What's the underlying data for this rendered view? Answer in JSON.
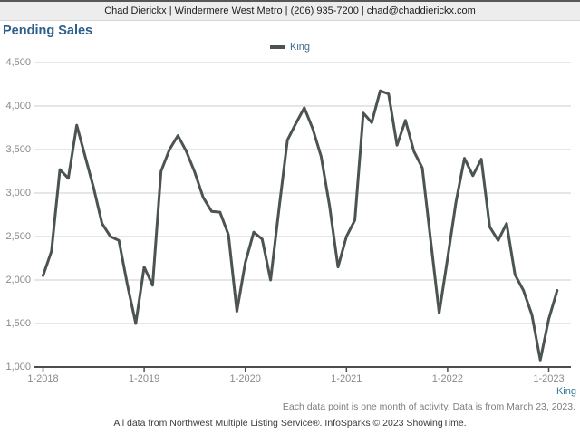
{
  "header": {
    "contact_line": "Chad Dierickx | Windermere West Metro | (206) 935-7200 | chad@chaddierickx.com"
  },
  "title": "Pending Sales",
  "legend": {
    "label": "King"
  },
  "footer": {
    "region_label": "King",
    "note_line1": "Each data point is one month of activity. Data is from March 23, 2023.",
    "note_line2": "All data from Northwest Multiple Listing Service®. InfoSparks © 2023 ShowingTime."
  },
  "colors": {
    "accent_title": "#2d5f8a",
    "legend_label": "#3c6d91",
    "series_line": "#4b544e",
    "grid_line": "#cccccc",
    "axis_line": "#4d4d4d",
    "tick_label": "#8a8a8a",
    "region_label": "#2f7795",
    "note_primary": "#7d7d7d",
    "note_secondary": "#3c3c3c",
    "header_bg": "#ededed",
    "header_border": "#58585a"
  },
  "chart_data": {
    "type": "line",
    "title": "Pending Sales",
    "ylabel": "",
    "xlabel": "",
    "ylim": [
      1000,
      4500
    ],
    "grid": "horizontal",
    "legend_position": "top-center",
    "y_ticks": [
      1000,
      1500,
      2000,
      2500,
      3000,
      3500,
      4000,
      4500
    ],
    "y_tick_labels": [
      "1,000",
      "1,500",
      "2,000",
      "2,500",
      "3,000",
      "3,500",
      "4,000",
      "4,500"
    ],
    "x_tick_labels": [
      "1-2018",
      "1-2019",
      "1-2020",
      "1-2021",
      "1-2022",
      "1-2023"
    ],
    "x_tick_positions": [
      0,
      12,
      24,
      36,
      48,
      60
    ],
    "x": [
      "1-2018",
      "2-2018",
      "3-2018",
      "4-2018",
      "5-2018",
      "6-2018",
      "7-2018",
      "8-2018",
      "9-2018",
      "10-2018",
      "11-2018",
      "12-2018",
      "1-2019",
      "2-2019",
      "3-2019",
      "4-2019",
      "5-2019",
      "6-2019",
      "7-2019",
      "8-2019",
      "9-2019",
      "10-2019",
      "11-2019",
      "12-2019",
      "1-2020",
      "2-2020",
      "3-2020",
      "4-2020",
      "5-2020",
      "6-2020",
      "7-2020",
      "8-2020",
      "9-2020",
      "10-2020",
      "11-2020",
      "12-2020",
      "1-2021",
      "2-2021",
      "3-2021",
      "4-2021",
      "5-2021",
      "6-2021",
      "7-2021",
      "8-2021",
      "9-2021",
      "10-2021",
      "11-2021",
      "12-2021",
      "1-2022",
      "2-2022",
      "3-2022",
      "4-2022",
      "5-2022",
      "6-2022",
      "7-2022",
      "8-2022",
      "9-2022",
      "10-2022",
      "11-2022",
      "12-2022",
      "1-2023",
      "2-2023"
    ],
    "series": [
      {
        "name": "King",
        "color": "#4b544e",
        "values": [
          2050,
          2330,
          3270,
          3170,
          3780,
          3420,
          3060,
          2650,
          2500,
          2455,
          1950,
          1500,
          2150,
          1940,
          3250,
          3500,
          3660,
          3480,
          3240,
          2950,
          2790,
          2780,
          2520,
          1640,
          2200,
          2550,
          2470,
          2000,
          2820,
          3610,
          3800,
          3980,
          3740,
          3420,
          2850,
          2150,
          2500,
          2690,
          3920,
          3810,
          4175,
          4140,
          3550,
          3835,
          3480,
          3290,
          2450,
          1620,
          2250,
          2900,
          3400,
          3200,
          3390,
          2610,
          2455,
          2650,
          2060,
          1880,
          1600,
          1080,
          1550,
          1880
        ]
      }
    ]
  }
}
